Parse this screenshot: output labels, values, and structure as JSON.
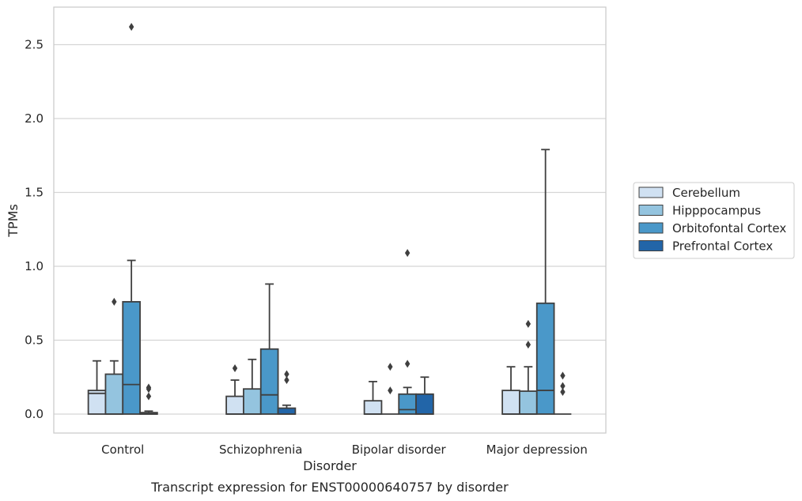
{
  "chart_data": {
    "type": "box",
    "caption": "Transcript expression for ENST00000640757 by disorder",
    "xlabel": "Disorder",
    "ylabel": "TPMs",
    "ylim": [
      -0.13,
      2.76
    ],
    "yticks": [
      0.0,
      0.5,
      1.0,
      1.5,
      2.0,
      2.5
    ],
    "ytick_labels": [
      "0.0",
      "0.5",
      "1.0",
      "1.5",
      "2.0",
      "2.5"
    ],
    "grid": true,
    "legend_position": "right",
    "categories": [
      "Control",
      "Schizophrenia",
      "Bipolar disorder",
      "Major depression"
    ],
    "series": [
      {
        "name": "Cerebellum",
        "color": "#d0e1f2",
        "boxes": [
          {
            "q1": 0.0,
            "median": 0.14,
            "q3": 0.16,
            "whisker_low": 0.0,
            "whisker_high": 0.36,
            "outliers": []
          },
          {
            "q1": 0.0,
            "median": 0.0,
            "q3": 0.12,
            "whisker_low": 0.0,
            "whisker_high": 0.23,
            "outliers": [
              0.31
            ]
          },
          {
            "q1": 0.0,
            "median": 0.0,
            "q3": 0.09,
            "whisker_low": 0.0,
            "whisker_high": 0.22,
            "outliers": []
          },
          {
            "q1": 0.0,
            "median": 0.0,
            "q3": 0.16,
            "whisker_low": 0.0,
            "whisker_high": 0.32,
            "outliers": []
          }
        ]
      },
      {
        "name": "Hipppocampus",
        "color": "#94c4df",
        "boxes": [
          {
            "q1": 0.0,
            "median": 0.0,
            "q3": 0.27,
            "whisker_low": 0.0,
            "whisker_high": 0.36,
            "outliers": [
              0.76
            ]
          },
          {
            "q1": 0.0,
            "median": 0.0,
            "q3": 0.17,
            "whisker_low": 0.0,
            "whisker_high": 0.37,
            "outliers": []
          },
          {
            "q1": 0.0,
            "median": 0.0,
            "q3": 0.0,
            "whisker_low": 0.0,
            "whisker_high": 0.0,
            "outliers": [
              0.16,
              0.32
            ]
          },
          {
            "q1": 0.0,
            "median": 0.0,
            "q3": 0.155,
            "whisker_low": 0.0,
            "whisker_high": 0.32,
            "outliers": [
              0.47,
              0.61
            ]
          }
        ]
      },
      {
        "name": "Orbitofontal Cortex",
        "color": "#4a98c9",
        "boxes": [
          {
            "q1": 0.0,
            "median": 0.2,
            "q3": 0.76,
            "whisker_low": 0.0,
            "whisker_high": 1.04,
            "outliers": [
              2.62
            ]
          },
          {
            "q1": 0.0,
            "median": 0.13,
            "q3": 0.44,
            "whisker_low": 0.0,
            "whisker_high": 0.88,
            "outliers": []
          },
          {
            "q1": 0.0,
            "median": 0.03,
            "q3": 0.135,
            "whisker_low": 0.0,
            "whisker_high": 0.18,
            "outliers": [
              0.34,
              1.09
            ]
          },
          {
            "q1": 0.0,
            "median": 0.16,
            "q3": 0.75,
            "whisker_low": 0.0,
            "whisker_high": 1.79,
            "outliers": []
          }
        ]
      },
      {
        "name": "Prefrontal Cortex",
        "color": "#2265a8",
        "boxes": [
          {
            "q1": 0.0,
            "median": 0.0,
            "q3": 0.01,
            "whisker_low": 0.0,
            "whisker_high": 0.02,
            "outliers": [
              0.12,
              0.17,
              0.18
            ]
          },
          {
            "q1": 0.0,
            "median": 0.0,
            "q3": 0.04,
            "whisker_low": 0.0,
            "whisker_high": 0.06,
            "outliers": [
              0.23,
              0.27
            ]
          },
          {
            "q1": 0.0,
            "median": 0.0,
            "q3": 0.135,
            "whisker_low": 0.0,
            "whisker_high": 0.25,
            "outliers": []
          },
          {
            "q1": 0.0,
            "median": 0.0,
            "q3": 0.0,
            "whisker_low": 0.0,
            "whisker_high": 0.0,
            "outliers": [
              0.15,
              0.19,
              0.26
            ]
          }
        ]
      }
    ]
  }
}
